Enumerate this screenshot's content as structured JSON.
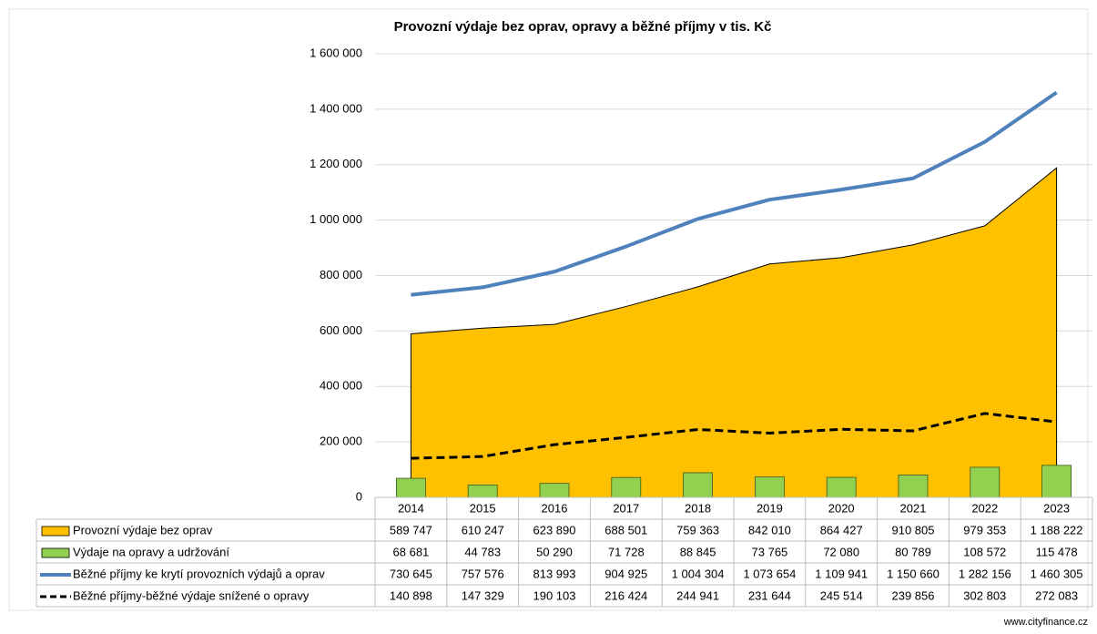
{
  "chart_data": {
    "type": "combo",
    "title": "Provozní výdaje bez oprav, opravy a běžné příjmy v tis. Kč",
    "categories": [
      "2014",
      "2015",
      "2016",
      "2017",
      "2018",
      "2019",
      "2020",
      "2021",
      "2022",
      "2023"
    ],
    "ylim": [
      0,
      1600000
    ],
    "yticks": [
      {
        "value": 0,
        "label": "0"
      },
      {
        "value": 200000,
        "label": "200 000"
      },
      {
        "value": 400000,
        "label": "400 000"
      },
      {
        "value": 600000,
        "label": "600 000"
      },
      {
        "value": 800000,
        "label": "800 000"
      },
      {
        "value": 1000000,
        "label": "1 000 000"
      },
      {
        "value": 1200000,
        "label": "1 200 000"
      },
      {
        "value": 1400000,
        "label": "1 400 000"
      },
      {
        "value": 1600000,
        "label": "1 600 000"
      }
    ],
    "grid": true,
    "series": [
      {
        "name": "Provozní výdaje bez oprav",
        "type": "area",
        "color": "#ffc000",
        "values": [
          589747,
          610247,
          623890,
          688501,
          759363,
          842010,
          864427,
          910805,
          979353,
          1188222
        ],
        "value_labels": [
          "589 747",
          "610 247",
          "623 890",
          "688 501",
          "759 363",
          "842 010",
          "864 427",
          "910 805",
          "979 353",
          "1 188 222"
        ]
      },
      {
        "name": "Výdaje na opravy a udržování",
        "type": "bar",
        "color": "#92d050",
        "values": [
          68681,
          44783,
          50290,
          71728,
          88845,
          73765,
          72080,
          80789,
          108572,
          115478
        ],
        "value_labels": [
          "68 681",
          "44 783",
          "50 290",
          "71 728",
          "88 845",
          "73 765",
          "72 080",
          "80 789",
          "108 572",
          "115 478"
        ]
      },
      {
        "name": "Běžné příjmy ke krytí provozních výdajů a oprav",
        "type": "line",
        "color": "#4f81bd",
        "values": [
          730645,
          757576,
          813993,
          904925,
          1004304,
          1073654,
          1109941,
          1150660,
          1282156,
          1460305
        ],
        "value_labels": [
          "730 645",
          "757 576",
          "813 993",
          "904 925",
          "1 004 304",
          "1 073 654",
          "1 109 941",
          "1 150 660",
          "1 282 156",
          "1 460 305"
        ]
      },
      {
        "name": "Běžné příjmy-běžné výdaje snížené o opravy",
        "type": "dashed-line",
        "color": "#000000",
        "values": [
          140898,
          147329,
          190103,
          216424,
          244941,
          231644,
          245514,
          239856,
          302803,
          272083
        ],
        "value_labels": [
          "140 898",
          "147 329",
          "190 103",
          "216 424",
          "244 941",
          "231 644",
          "245 514",
          "239 856",
          "302 803",
          "272 083"
        ]
      }
    ],
    "source": "www.cityfinance.cz"
  }
}
